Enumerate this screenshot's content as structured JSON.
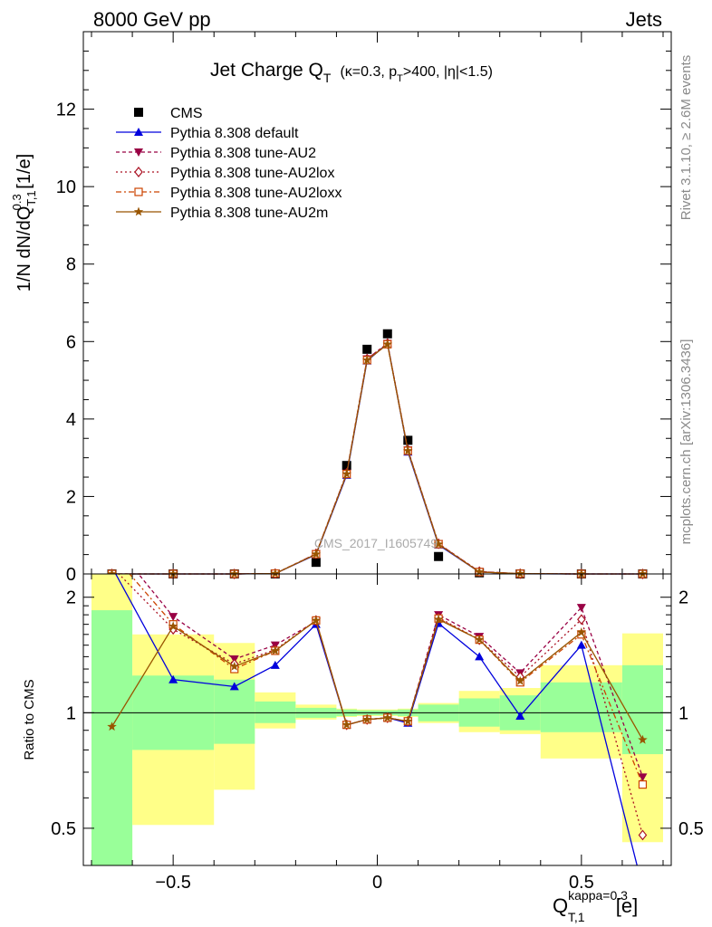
{
  "header": {
    "left": "8000 GeV pp",
    "right": "Jets"
  },
  "side_text": {
    "rivet": "Rivet 3.1.10, ≥ 2.6M events",
    "mcplots": "mcplots.cern.ch [arXiv:1306.3436]"
  },
  "watermark": "CMS_2017_I1605749",
  "title": {
    "main": "Jet Charge Q",
    "main_sub": "T",
    "cut_a": "(κ=0.3, p",
    "cut_sub": "T",
    "cut_b": ">400, |η|<1.5)"
  },
  "ylabel": {
    "a": "1/N dN/dQ",
    "sup": "0.3",
    "sub": "T,1",
    "b": " [1/e]"
  },
  "ratio_ylabel": "Ratio to CMS",
  "xlabel": {
    "main": "Q",
    "sup": "kappa=0.3",
    "sub": "T,1",
    "unit": " [e]"
  },
  "colors": {
    "data": "#000000",
    "default": "#0000dd",
    "au2": "#990044",
    "au2lox": "#aa1122",
    "au2loxx": "#cc4400",
    "au2m": "#995500",
    "band_inner": "#99ff99",
    "band_outer": "#ffff88"
  },
  "chart_data": [
    {
      "type": "line",
      "xlim": [
        -0.72,
        0.72
      ],
      "ylim": [
        0,
        14
      ],
      "yticks": [
        0,
        2,
        4,
        6,
        8,
        10,
        12
      ],
      "ytick_labels": [
        "0",
        "2",
        "4",
        "6",
        "8",
        "10",
        "12"
      ],
      "legend_position": "top-left",
      "x": [
        -0.65,
        -0.5,
        -0.35,
        -0.25,
        -0.15,
        -0.075,
        -0.025,
        0.025,
        0.075,
        0.15,
        0.25,
        0.35,
        0.5,
        0.65
      ],
      "series": [
        {
          "name": "CMS",
          "key": "data",
          "marker": "square",
          "values": [
            0.0,
            0.0,
            0.0,
            0.0,
            0.3,
            2.8,
            5.8,
            6.2,
            3.45,
            0.45,
            0.03,
            0.0,
            0.0,
            0.0
          ]
        },
        {
          "name": "Pythia 8.308 default",
          "key": "default",
          "marker": "triangle-up",
          "values": [
            0.0,
            0.0,
            0.0,
            0.01,
            0.5,
            2.55,
            5.5,
            5.95,
            3.15,
            0.75,
            0.05,
            0.005,
            0.0,
            0.0
          ]
        },
        {
          "name": "Pythia 8.308 tune-AU2",
          "key": "au2",
          "marker": "triangle-down",
          "values": [
            0.0,
            0.0,
            0.0,
            0.01,
            0.52,
            2.6,
            5.55,
            5.95,
            3.2,
            0.78,
            0.06,
            0.006,
            0.0,
            0.0
          ]
        },
        {
          "name": "Pythia 8.308 tune-AU2lox",
          "key": "au2lox",
          "marker": "diamond-open",
          "values": [
            0.0,
            0.0,
            0.0,
            0.01,
            0.52,
            2.6,
            5.55,
            5.95,
            3.2,
            0.78,
            0.06,
            0.006,
            0.0,
            0.0
          ]
        },
        {
          "name": "Pythia 8.308 tune-AU2loxx",
          "key": "au2loxx",
          "marker": "square-open",
          "values": [
            0.0,
            0.0,
            0.0,
            0.01,
            0.51,
            2.58,
            5.52,
            5.93,
            3.18,
            0.77,
            0.05,
            0.006,
            0.0,
            0.0
          ]
        },
        {
          "name": "Pythia 8.308 tune-AU2m",
          "key": "au2m",
          "marker": "star",
          "values": [
            0.0,
            0.0,
            0.0,
            0.01,
            0.51,
            2.58,
            5.52,
            5.93,
            3.18,
            0.77,
            0.05,
            0.006,
            0.0,
            0.0
          ]
        }
      ]
    },
    {
      "type": "line",
      "xlim": [
        -0.72,
        0.72
      ],
      "ylim": [
        0.4,
        2.3
      ],
      "log_y": true,
      "yticks": [
        0.5,
        1,
        2
      ],
      "ytick_labels": [
        "0.5",
        "1",
        "2"
      ],
      "xticks": [
        -0.5,
        0,
        0.5
      ],
      "xtick_labels": [
        "−0.5",
        "0",
        "0.5"
      ],
      "bins": [
        [
          -0.7,
          -0.6
        ],
        [
          -0.6,
          -0.4
        ],
        [
          -0.4,
          -0.3
        ],
        [
          -0.3,
          -0.2
        ],
        [
          -0.2,
          -0.1
        ],
        [
          -0.1,
          -0.05
        ],
        [
          -0.05,
          0.0
        ],
        [
          0.0,
          0.05
        ],
        [
          0.05,
          0.1
        ],
        [
          0.1,
          0.2
        ],
        [
          0.2,
          0.3
        ],
        [
          0.3,
          0.4
        ],
        [
          0.4,
          0.6
        ],
        [
          0.6,
          0.7
        ]
      ],
      "band_inner": [
        [
          0.3,
          1.85
        ],
        [
          0.8,
          1.25
        ],
        [
          0.83,
          1.22
        ],
        [
          0.94,
          1.07
        ],
        [
          0.97,
          1.03
        ],
        [
          0.98,
          1.02
        ],
        [
          0.985,
          1.015
        ],
        [
          0.985,
          1.015
        ],
        [
          0.98,
          1.02
        ],
        [
          0.95,
          1.05
        ],
        [
          0.92,
          1.09
        ],
        [
          0.9,
          1.11
        ],
        [
          0.89,
          1.2
        ],
        [
          0.78,
          1.33
        ]
      ],
      "band_outer": [
        [
          0.3,
          2.35
        ],
        [
          0.51,
          1.6
        ],
        [
          0.63,
          1.52
        ],
        [
          0.91,
          1.13
        ],
        [
          0.96,
          1.05
        ],
        [
          0.975,
          1.025
        ],
        [
          0.98,
          1.02
        ],
        [
          0.98,
          1.02
        ],
        [
          0.975,
          1.025
        ],
        [
          0.94,
          1.06
        ],
        [
          0.89,
          1.14
        ],
        [
          0.88,
          1.16
        ],
        [
          0.76,
          1.33
        ],
        [
          0.46,
          1.61
        ]
      ],
      "x": [
        -0.65,
        -0.5,
        -0.35,
        -0.25,
        -0.15,
        -0.075,
        -0.025,
        0.025,
        0.075,
        0.15,
        0.25,
        0.35,
        0.5,
        0.65
      ],
      "series": [
        {
          "name": "Pythia 8.308 default",
          "key": "default",
          "values": [
            2.4,
            1.22,
            1.17,
            1.33,
            1.7,
            0.93,
            0.96,
            0.97,
            0.94,
            1.71,
            1.4,
            0.98,
            1.5,
            0.35
          ]
        },
        {
          "name": "Pythia 8.308 tune-AU2",
          "key": "au2",
          "values": [
            2.8,
            1.78,
            1.38,
            1.5,
            1.73,
            0.93,
            0.96,
            0.97,
            0.95,
            1.8,
            1.58,
            1.27,
            1.88,
            0.68
          ]
        },
        {
          "name": "Pythia 8.308 tune-AU2lox",
          "key": "au2lox",
          "values": [
            2.4,
            1.65,
            1.34,
            1.46,
            1.74,
            0.93,
            0.96,
            0.97,
            0.95,
            1.77,
            1.55,
            1.24,
            1.75,
            0.48
          ]
        },
        {
          "name": "Pythia 8.308 tune-AU2loxx",
          "key": "au2loxx",
          "values": [
            2.6,
            1.7,
            1.3,
            1.45,
            1.74,
            0.93,
            0.96,
            0.97,
            0.95,
            1.76,
            1.55,
            1.2,
            1.6,
            0.65
          ]
        },
        {
          "name": "Pythia 8.308 tune-AU2m",
          "key": "au2m",
          "values": [
            0.92,
            1.68,
            1.32,
            1.45,
            1.74,
            0.93,
            0.96,
            0.97,
            0.95,
            1.75,
            1.55,
            1.21,
            1.62,
            0.85
          ]
        }
      ]
    }
  ]
}
